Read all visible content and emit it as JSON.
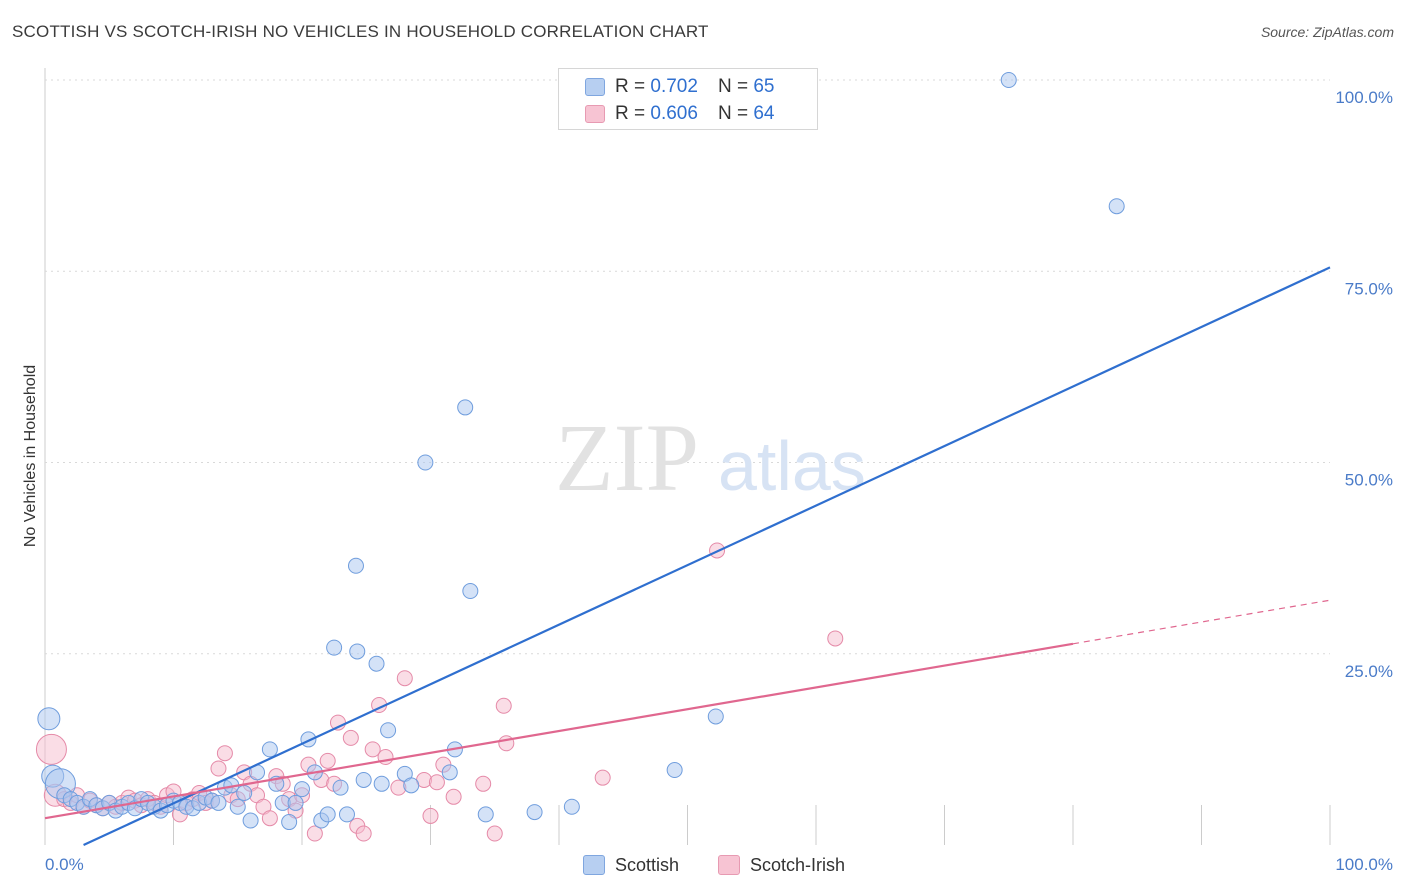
{
  "title": "SCOTTISH VS SCOTCH-IRISH NO VEHICLES IN HOUSEHOLD CORRELATION CHART",
  "source": "Source: ZipAtlas.com",
  "watermark": {
    "zip": "ZIP",
    "atlas": "atlas"
  },
  "legend": {
    "rows": [
      {
        "r_label": "R =",
        "r_value": "0.702",
        "n_label": "N =",
        "n_value": "65"
      },
      {
        "r_label": "R =",
        "r_value": "0.606",
        "n_label": "N =",
        "n_value": "64"
      }
    ]
  },
  "bottom_legend": {
    "scottish": "Scottish",
    "scotch_irish": "Scotch-Irish"
  },
  "colors": {
    "blue_fill": "#a9c6ef",
    "blue_stroke": "#6f9ddd",
    "blue_line": "#2f6fcf",
    "pink_fill": "#f6bccd",
    "pink_stroke": "#e58aa8",
    "pink_line": "#e0678f",
    "grid": "#d9d9d9",
    "axis_label": "#4a7bc8"
  },
  "chart_data": {
    "type": "scatter",
    "title": "SCOTTISH VS SCOTCH-IRISH NO VEHICLES IN HOUSEHOLD CORRELATION CHART",
    "xlabel": "",
    "ylabel": "No Vehicles in Household",
    "xlim": [
      0,
      100
    ],
    "ylim": [
      0,
      100
    ],
    "x_tick_labels": [
      "0.0%",
      "100.0%"
    ],
    "y_ticks": [
      25,
      50,
      75,
      100
    ],
    "y_tick_labels": [
      "25.0%",
      "50.0%",
      "75.0%",
      "100.0%"
    ],
    "grid": true,
    "series": [
      {
        "name": "Scottish",
        "r": 0.702,
        "n": 65,
        "trend": {
          "x": [
            3,
            100
          ],
          "y": [
            0,
            75.5
          ],
          "dashed_from": null
        },
        "points": [
          {
            "x": 0.3,
            "y": 16.5,
            "s": 2
          },
          {
            "x": 0.6,
            "y": 9,
            "s": 2
          },
          {
            "x": 1.2,
            "y": 8,
            "s": 3
          },
          {
            "x": 1.5,
            "y": 6.5,
            "s": 1
          },
          {
            "x": 2,
            "y": 6,
            "s": 1
          },
          {
            "x": 2.5,
            "y": 5.5,
            "s": 1
          },
          {
            "x": 3,
            "y": 5,
            "s": 1
          },
          {
            "x": 3.5,
            "y": 6,
            "s": 1
          },
          {
            "x": 4,
            "y": 5.2,
            "s": 1
          },
          {
            "x": 4.5,
            "y": 4.8,
            "s": 1
          },
          {
            "x": 5,
            "y": 5.5,
            "s": 1
          },
          {
            "x": 5.5,
            "y": 4.5,
            "s": 1
          },
          {
            "x": 6,
            "y": 5,
            "s": 1
          },
          {
            "x": 6.5,
            "y": 5.5,
            "s": 1
          },
          {
            "x": 7,
            "y": 4.8,
            "s": 1
          },
          {
            "x": 7.5,
            "y": 6,
            "s": 1
          },
          {
            "x": 8,
            "y": 5.5,
            "s": 1
          },
          {
            "x": 8.5,
            "y": 5,
            "s": 1
          },
          {
            "x": 9,
            "y": 4.5,
            "s": 1
          },
          {
            "x": 9.5,
            "y": 5.2,
            "s": 1
          },
          {
            "x": 10,
            "y": 5.8,
            "s": 1
          },
          {
            "x": 10.5,
            "y": 5.5,
            "s": 1
          },
          {
            "x": 11,
            "y": 5,
            "s": 1
          },
          {
            "x": 11.5,
            "y": 4.8,
            "s": 1
          },
          {
            "x": 12,
            "y": 5.5,
            "s": 1
          },
          {
            "x": 12.5,
            "y": 6.2,
            "s": 1
          },
          {
            "x": 13,
            "y": 5.8,
            "s": 1
          },
          {
            "x": 13.5,
            "y": 5.5,
            "s": 1
          },
          {
            "x": 14,
            "y": 7.5,
            "s": 1
          },
          {
            "x": 14.5,
            "y": 7.8,
            "s": 1
          },
          {
            "x": 15,
            "y": 5,
            "s": 1
          },
          {
            "x": 15.5,
            "y": 6.8,
            "s": 1
          },
          {
            "x": 16,
            "y": 3.2,
            "s": 1
          },
          {
            "x": 16.5,
            "y": 9.5,
            "s": 1
          },
          {
            "x": 17.5,
            "y": 12.5,
            "s": 1
          },
          {
            "x": 18,
            "y": 8,
            "s": 1
          },
          {
            "x": 18.5,
            "y": 5.5,
            "s": 1
          },
          {
            "x": 19,
            "y": 3,
            "s": 1
          },
          {
            "x": 19.5,
            "y": 5.5,
            "s": 1
          },
          {
            "x": 20,
            "y": 7.3,
            "s": 1
          },
          {
            "x": 20.5,
            "y": 13.8,
            "s": 1
          },
          {
            "x": 21,
            "y": 9.5,
            "s": 1
          },
          {
            "x": 21.5,
            "y": 3.2,
            "s": 1
          },
          {
            "x": 22,
            "y": 4,
            "s": 1
          },
          {
            "x": 22.5,
            "y": 25.8,
            "s": 1
          },
          {
            "x": 23,
            "y": 7.5,
            "s": 1
          },
          {
            "x": 23.5,
            "y": 4,
            "s": 1
          },
          {
            "x": 24.3,
            "y": 25.3,
            "s": 1
          },
          {
            "x": 24.8,
            "y": 8.5,
            "s": 1
          },
          {
            "x": 24.2,
            "y": 36.5,
            "s": 1
          },
          {
            "x": 25.8,
            "y": 23.7,
            "s": 1
          },
          {
            "x": 26.2,
            "y": 8,
            "s": 1
          },
          {
            "x": 26.7,
            "y": 15,
            "s": 1
          },
          {
            "x": 28,
            "y": 9.3,
            "s": 1
          },
          {
            "x": 28.5,
            "y": 7.8,
            "s": 1
          },
          {
            "x": 29.6,
            "y": 50,
            "s": 1
          },
          {
            "x": 31.5,
            "y": 9.5,
            "s": 1
          },
          {
            "x": 31.9,
            "y": 12.5,
            "s": 1
          },
          {
            "x": 32.7,
            "y": 57.2,
            "s": 1
          },
          {
            "x": 33.1,
            "y": 33.2,
            "s": 1
          },
          {
            "x": 34.3,
            "y": 4,
            "s": 1
          },
          {
            "x": 38.1,
            "y": 4.3,
            "s": 1
          },
          {
            "x": 41,
            "y": 5,
            "s": 1
          },
          {
            "x": 49,
            "y": 9.8,
            "s": 1
          },
          {
            "x": 52.2,
            "y": 16.8,
            "s": 1
          },
          {
            "x": 75,
            "y": 100,
            "s": 1
          },
          {
            "x": 83.4,
            "y": 83.5,
            "s": 1
          }
        ]
      },
      {
        "name": "Scotch-Irish",
        "r": 0.606,
        "n": 64,
        "trend": {
          "x": [
            0,
            100
          ],
          "y": [
            3.5,
            32
          ],
          "dashed_from": 80
        },
        "points": [
          {
            "x": 0.5,
            "y": 12.5,
            "s": 3
          },
          {
            "x": 0.8,
            "y": 6.5,
            "s": 2
          },
          {
            "x": 1.5,
            "y": 6,
            "s": 1
          },
          {
            "x": 2,
            "y": 5.5,
            "s": 1
          },
          {
            "x": 2.5,
            "y": 6.5,
            "s": 1
          },
          {
            "x": 3,
            "y": 5,
            "s": 1
          },
          {
            "x": 3.5,
            "y": 5.8,
            "s": 1
          },
          {
            "x": 4,
            "y": 5.2,
            "s": 1
          },
          {
            "x": 4.5,
            "y": 4.8,
            "s": 1
          },
          {
            "x": 5,
            "y": 5.5,
            "s": 1
          },
          {
            "x": 5.5,
            "y": 5,
            "s": 1
          },
          {
            "x": 6,
            "y": 5.5,
            "s": 1
          },
          {
            "x": 6.5,
            "y": 6.2,
            "s": 1
          },
          {
            "x": 7,
            "y": 5.8,
            "s": 1
          },
          {
            "x": 7.5,
            "y": 5.2,
            "s": 1
          },
          {
            "x": 8,
            "y": 6,
            "s": 1
          },
          {
            "x": 8.5,
            "y": 5.5,
            "s": 1
          },
          {
            "x": 9,
            "y": 5,
            "s": 1
          },
          {
            "x": 9.5,
            "y": 6.5,
            "s": 1
          },
          {
            "x": 10,
            "y": 7,
            "s": 1
          },
          {
            "x": 10.5,
            "y": 4,
            "s": 1
          },
          {
            "x": 11,
            "y": 5.5,
            "s": 1
          },
          {
            "x": 11.5,
            "y": 6,
            "s": 1
          },
          {
            "x": 12,
            "y": 6.8,
            "s": 1
          },
          {
            "x": 12.5,
            "y": 5.5,
            "s": 1
          },
          {
            "x": 13,
            "y": 5.8,
            "s": 1
          },
          {
            "x": 13.5,
            "y": 10,
            "s": 1
          },
          {
            "x": 14,
            "y": 12,
            "s": 1
          },
          {
            "x": 14.5,
            "y": 6.5,
            "s": 1
          },
          {
            "x": 15,
            "y": 6,
            "s": 1
          },
          {
            "x": 15.5,
            "y": 9.5,
            "s": 1
          },
          {
            "x": 16,
            "y": 8,
            "s": 1
          },
          {
            "x": 16.5,
            "y": 6.5,
            "s": 1
          },
          {
            "x": 17,
            "y": 5,
            "s": 1
          },
          {
            "x": 17.5,
            "y": 3.5,
            "s": 1
          },
          {
            "x": 18,
            "y": 9,
            "s": 1
          },
          {
            "x": 18.5,
            "y": 8,
            "s": 1
          },
          {
            "x": 19,
            "y": 6,
            "s": 1
          },
          {
            "x": 19.5,
            "y": 4.5,
            "s": 1
          },
          {
            "x": 20,
            "y": 6.5,
            "s": 1
          },
          {
            "x": 20.5,
            "y": 10.5,
            "s": 1
          },
          {
            "x": 21,
            "y": 1.5,
            "s": 1
          },
          {
            "x": 21.5,
            "y": 8.5,
            "s": 1
          },
          {
            "x": 22,
            "y": 11,
            "s": 1
          },
          {
            "x": 22.5,
            "y": 8,
            "s": 1
          },
          {
            "x": 22.8,
            "y": 16,
            "s": 1
          },
          {
            "x": 23.8,
            "y": 14,
            "s": 1
          },
          {
            "x": 24.3,
            "y": 2.5,
            "s": 1
          },
          {
            "x": 24.8,
            "y": 1.5,
            "s": 1
          },
          {
            "x": 25.5,
            "y": 12.5,
            "s": 1
          },
          {
            "x": 26,
            "y": 18.3,
            "s": 1
          },
          {
            "x": 26.5,
            "y": 11.5,
            "s": 1
          },
          {
            "x": 27.5,
            "y": 7.5,
            "s": 1
          },
          {
            "x": 28,
            "y": 21.8,
            "s": 1
          },
          {
            "x": 29.5,
            "y": 8.5,
            "s": 1
          },
          {
            "x": 30,
            "y": 3.8,
            "s": 1
          },
          {
            "x": 30.5,
            "y": 8.2,
            "s": 1
          },
          {
            "x": 31,
            "y": 10.5,
            "s": 1
          },
          {
            "x": 31.8,
            "y": 6.3,
            "s": 1
          },
          {
            "x": 34.1,
            "y": 8,
            "s": 1
          },
          {
            "x": 35,
            "y": 1.5,
            "s": 1
          },
          {
            "x": 35.7,
            "y": 18.2,
            "s": 1
          },
          {
            "x": 35.9,
            "y": 13.3,
            "s": 1
          },
          {
            "x": 43.4,
            "y": 8.8,
            "s": 1
          },
          {
            "x": 52.3,
            "y": 38.5,
            "s": 1
          },
          {
            "x": 61.5,
            "y": 27,
            "s": 1
          }
        ]
      }
    ]
  }
}
